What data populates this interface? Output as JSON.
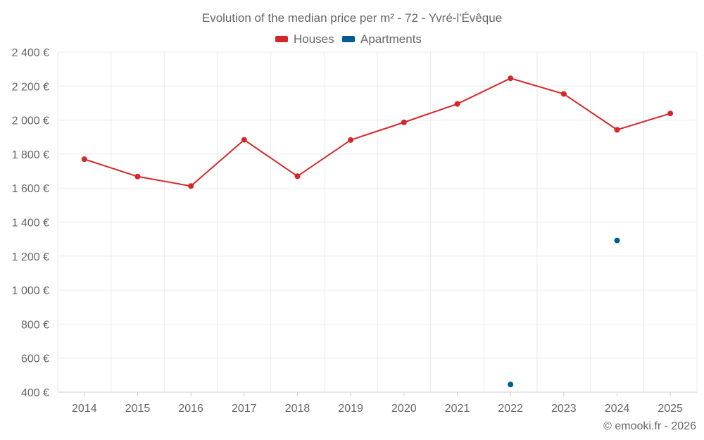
{
  "chart_data": {
    "type": "line",
    "title": "Evolution of the median price per m² - 72 - Yvré-l'Évêque",
    "categories": [
      "2014",
      "2015",
      "2016",
      "2017",
      "2018",
      "2019",
      "2020",
      "2021",
      "2022",
      "2023",
      "2024",
      "2025"
    ],
    "series": [
      {
        "name": "Houses",
        "color": "#d62728",
        "values": [
          1770,
          1668,
          1612,
          1884,
          1670,
          1883,
          1987,
          2095,
          2246,
          2154,
          1943,
          2039
        ]
      },
      {
        "name": "Apartments",
        "color": "#005b96",
        "values": [
          null,
          null,
          null,
          null,
          null,
          null,
          null,
          null,
          445,
          null,
          1292,
          null
        ]
      }
    ],
    "yticks": [
      400,
      600,
      800,
      1000,
      1200,
      1400,
      1600,
      1800,
      2000,
      2200,
      2400
    ],
    "ytick_labels": [
      "400 €",
      "600 €",
      "800 €",
      "1 000 €",
      "1 200 €",
      "1 400 €",
      "1 600 €",
      "1 800 €",
      "2 000 €",
      "2 200 €",
      "2 400 €"
    ],
    "ylim": [
      400,
      2400
    ],
    "xlabel": "",
    "ylabel": "",
    "legend_position": "top-center",
    "grid": true
  },
  "credit": "© emooki.fr - 2026"
}
